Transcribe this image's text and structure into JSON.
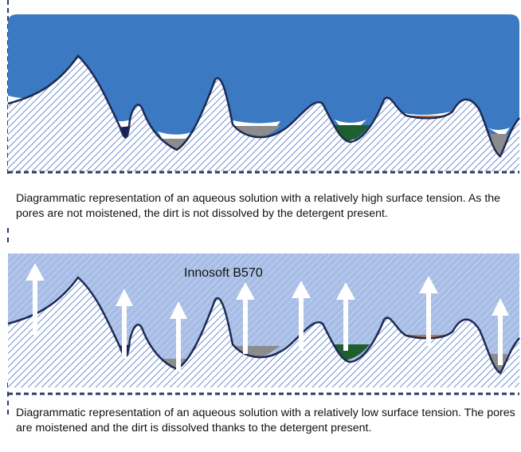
{
  "diagram_top": {
    "caption": "Diagrammatic representation of an aqueous solution with a relatively high surface tension. As the pores are not moistened, the dirt is not dissolved by the detergent present.",
    "colors": {
      "liquid": "#3b79c2",
      "surface_stroke": "#1c2a55",
      "hatch": "#6f8fcf",
      "border": "#2a3a66"
    }
  },
  "diagram_bottom": {
    "label": "Innosoft B570",
    "caption": "Diagrammatic representation of an aqueous solution with a relatively low surface tension. The pores are moistened and the dirt is dissolved thanks to the detergent present.",
    "colors": {
      "liquid": "#a7bde6",
      "surface_stroke": "#1c2a55",
      "arrow": "#ffffff"
    }
  },
  "dirt_colors": {
    "brown": "#b97a57",
    "navy": "#1a1f5c",
    "grey": "#8c8c8c",
    "green": "#1f5e2e",
    "white": "#ffffff"
  }
}
